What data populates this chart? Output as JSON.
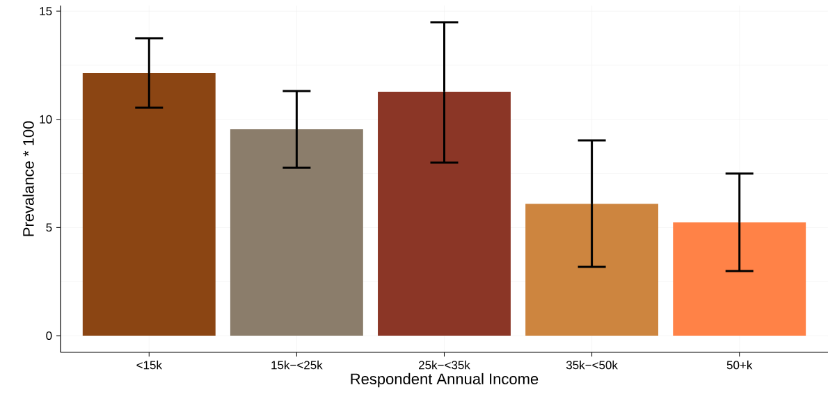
{
  "chart_data": {
    "type": "bar",
    "xlabel": "Respondent Annual Income",
    "ylabel": "Prevalance * 100",
    "categories": [
      "<15k",
      "15k−<25k",
      "25k−<35k",
      "35k−<50k",
      "50+k"
    ],
    "values": [
      12.14,
      9.54,
      11.28,
      6.1,
      5.24
    ],
    "colors": [
      "#8b4513",
      "#8b7d6b",
      "#8b3626",
      "#cd853f",
      "#ff8247"
    ],
    "errors": [
      [
        10.54,
        13.75
      ],
      [
        7.77,
        11.31
      ],
      [
        8.0,
        14.49
      ],
      [
        3.18,
        9.03
      ],
      [
        2.99,
        7.49
      ]
    ],
    "ylim": [
      -0.77,
      15.26
    ],
    "yticks": [
      0,
      5,
      10,
      15
    ],
    "grid": true
  }
}
